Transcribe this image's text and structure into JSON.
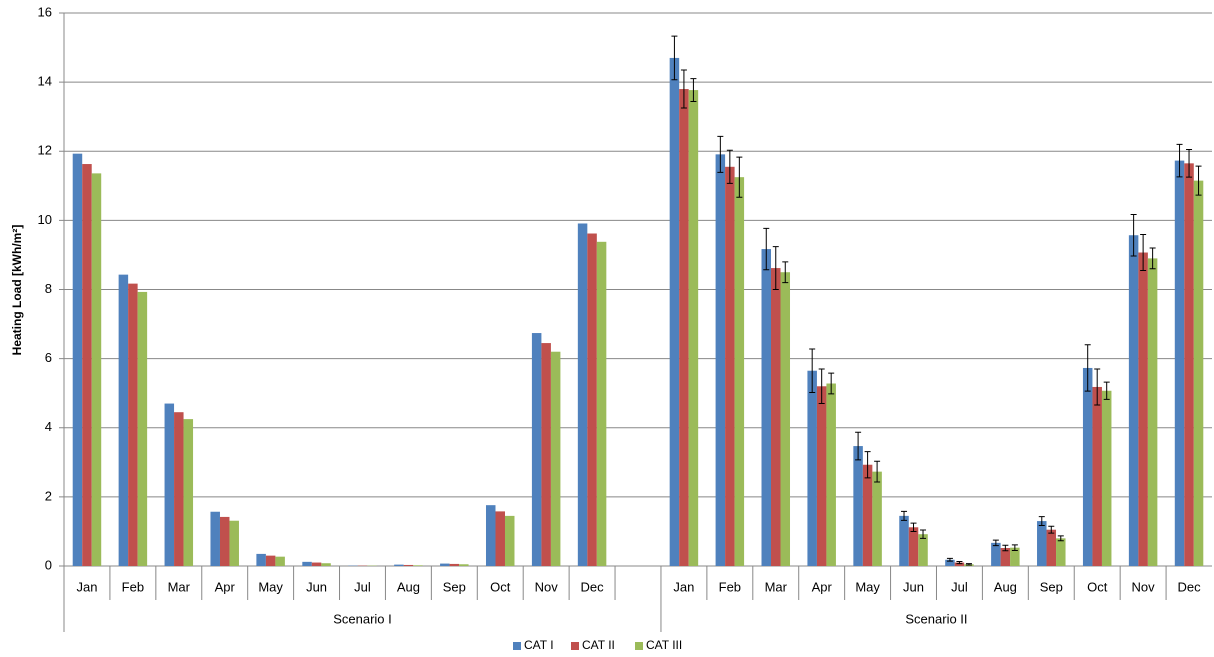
{
  "chart_data": {
    "type": "bar",
    "y_label": "Heating Load [kWh/m²]",
    "groups": [
      {
        "label": "Scenario I",
        "categories": [
          "Jan",
          "Feb",
          "Mar",
          "Apr",
          "May",
          "Jun",
          "Jul",
          "Aug",
          "Sep",
          "Oct",
          "Nov",
          "Dec",
          null
        ]
      },
      {
        "label": "Scenario II",
        "categories": [
          "Jan",
          "Feb",
          "Mar",
          "Apr",
          "May",
          "Jun",
          "Jul",
          "Aug",
          "Sep",
          "Oct",
          "Nov",
          "Dec"
        ]
      }
    ],
    "series": [
      {
        "name": "CAT I",
        "color": "#4f81bd",
        "values": [
          11.93,
          8.43,
          4.7,
          1.57,
          0.35,
          0.12,
          0.01,
          0.04,
          0.07,
          1.76,
          6.74,
          9.91,
          null,
          14.7,
          11.91,
          9.17,
          5.65,
          3.47,
          1.45,
          0.18,
          0.67,
          1.3,
          5.73,
          9.57,
          11.73
        ],
        "errors": [
          null,
          null,
          null,
          null,
          null,
          null,
          null,
          null,
          null,
          null,
          null,
          null,
          null,
          0.63,
          0.52,
          0.6,
          0.63,
          0.4,
          0.13,
          0.04,
          0.08,
          0.13,
          0.67,
          0.6,
          0.47
        ]
      },
      {
        "name": "CAT II",
        "color": "#c0504d",
        "values": [
          11.63,
          8.17,
          4.45,
          1.42,
          0.3,
          0.1,
          0.01,
          0.03,
          0.06,
          1.58,
          6.45,
          9.62,
          null,
          13.8,
          11.55,
          8.62,
          5.2,
          2.93,
          1.12,
          0.1,
          0.52,
          1.05,
          5.18,
          9.07,
          11.65
        ],
        "errors": [
          null,
          null,
          null,
          null,
          null,
          null,
          null,
          null,
          null,
          null,
          null,
          null,
          null,
          0.55,
          0.48,
          0.62,
          0.5,
          0.38,
          0.12,
          0.03,
          0.08,
          0.1,
          0.52,
          0.52,
          0.4
        ]
      },
      {
        "name": "CAT III",
        "color": "#9bbb59",
        "values": [
          11.36,
          7.93,
          4.25,
          1.31,
          0.27,
          0.08,
          0.01,
          0.02,
          0.05,
          1.45,
          6.2,
          9.38,
          null,
          13.77,
          11.25,
          8.5,
          5.28,
          2.73,
          0.92,
          0.05,
          0.53,
          0.8,
          5.07,
          8.9,
          11.15
        ],
        "errors": [
          null,
          null,
          null,
          null,
          null,
          null,
          null,
          null,
          null,
          null,
          null,
          null,
          null,
          0.33,
          0.58,
          0.3,
          0.3,
          0.3,
          0.12,
          0.02,
          0.08,
          0.07,
          0.25,
          0.3,
          0.42
        ]
      }
    ],
    "ylim": [
      0,
      16
    ],
    "yticks": [
      0,
      2,
      4,
      6,
      8,
      10,
      12,
      14,
      16
    ],
    "grid": true,
    "legend": "bottom"
  }
}
